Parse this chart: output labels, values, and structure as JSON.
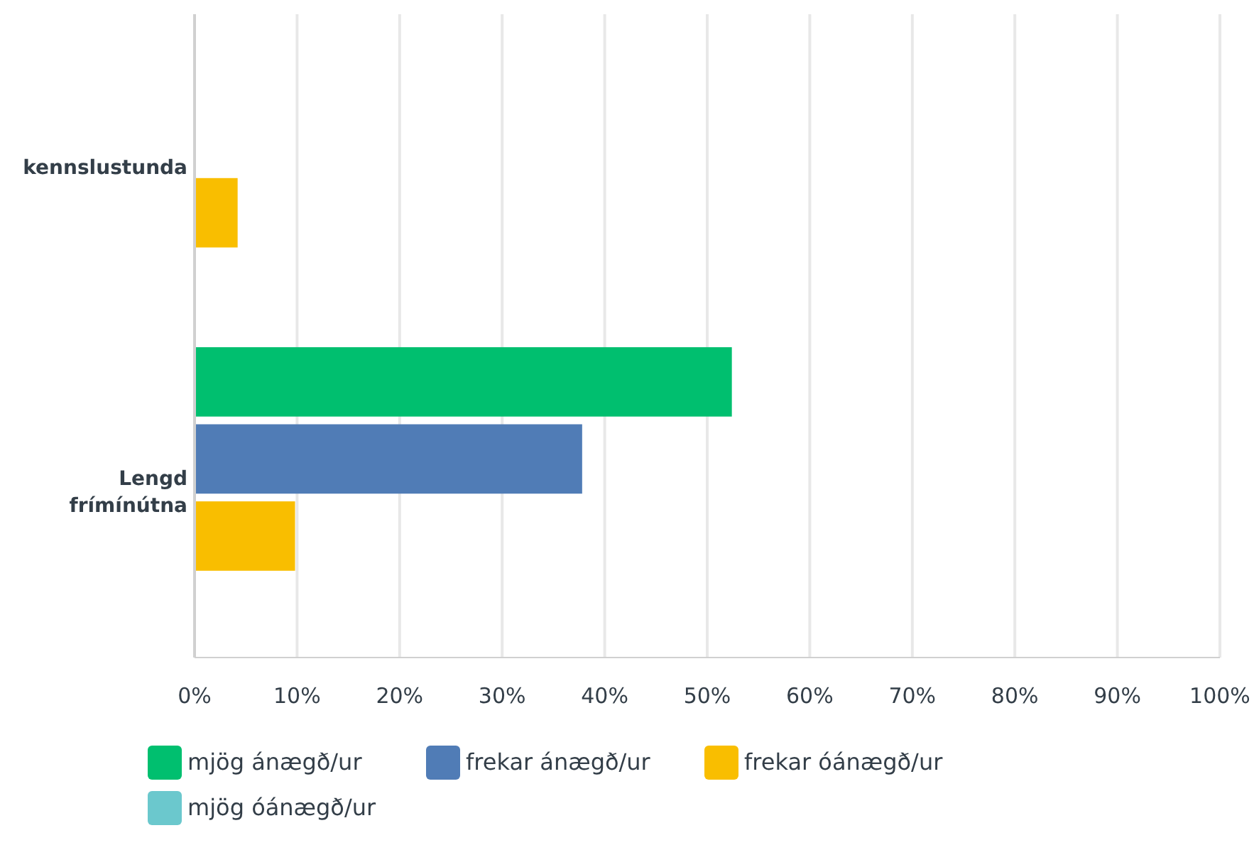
{
  "chart_data": {
    "type": "bar",
    "orientation": "horizontal",
    "categories": [
      "kennslustunda",
      "Lengd frímínútna"
    ],
    "series": [
      {
        "name": "mjög ánægð/ur",
        "color": "#00bf6f",
        "values": [
          null,
          52.4
        ]
      },
      {
        "name": "frekar ánægð/ur",
        "color": "#507cb6",
        "values": [
          null,
          37.8
        ]
      },
      {
        "name": "frekar óánægð/ur",
        "color": "#f9be00",
        "values": [
          4.2,
          9.8
        ]
      },
      {
        "name": "mjög óánægð/ur",
        "color": "#6bc8cd",
        "values": [
          null,
          0
        ]
      }
    ],
    "xlim": [
      0,
      100
    ],
    "xticks": [
      {
        "value": 0,
        "label": "0%"
      },
      {
        "value": 10,
        "label": "10%"
      },
      {
        "value": 20,
        "label": "20%"
      },
      {
        "value": 30,
        "label": "30%"
      },
      {
        "value": 40,
        "label": "40%"
      },
      {
        "value": 50,
        "label": "50%"
      },
      {
        "value": 60,
        "label": "60%"
      },
      {
        "value": 70,
        "label": "70%"
      },
      {
        "value": 80,
        "label": "80%"
      },
      {
        "value": 90,
        "label": "90%"
      },
      {
        "value": 100,
        "label": "100%"
      }
    ],
    "grid": "x",
    "legend": "bottom"
  }
}
